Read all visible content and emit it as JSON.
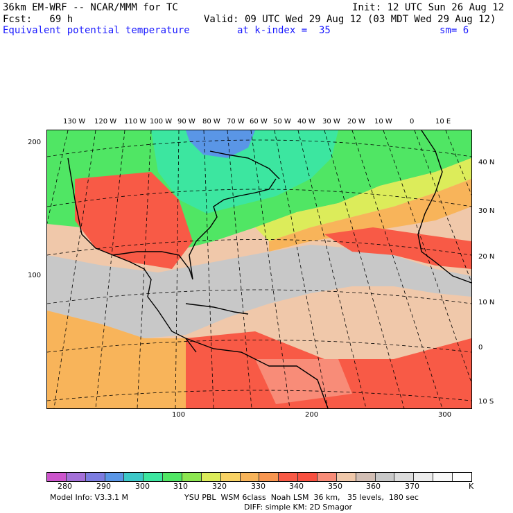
{
  "header": {
    "model_title": "36km EM-WRF -- NCAR/MMM for TC",
    "init": "Init: 12 UTC Sun 26 Aug 12",
    "fcst": "Fcst:   69 h",
    "valid": "Valid: 09 UTC Wed 29 Aug 12 (03 MDT Wed 29 Aug 12)",
    "field_name": "Equivalent potential temperature",
    "level": "at k-index =  35",
    "smoothing": "sm= 6"
  },
  "axes": {
    "top_lon_labels": [
      "130 W",
      "120 W",
      "110 W",
      "100 W",
      "90 W",
      "80 W",
      "70 W",
      "60 W",
      "50 W",
      "40 W",
      "30 W",
      "20 W",
      "10 W",
      "0",
      "10 E"
    ],
    "right_lat_labels": [
      "40 N",
      "30 N",
      "20 N",
      "10 N",
      "0",
      "10 S"
    ],
    "left_grid_labels": [
      "200",
      "100"
    ],
    "bottom_grid_labels": [
      "100",
      "200",
      "300"
    ]
  },
  "colorbar": {
    "colors": [
      "#cc55cc",
      "#a470d8",
      "#7c7ce0",
      "#5a96e6",
      "#3cc8c8",
      "#3ce6a0",
      "#50e664",
      "#8ce650",
      "#dcec5a",
      "#f8d264",
      "#f8b45a",
      "#f89650",
      "#f85a46",
      "#f85040",
      "#f88c78",
      "#f0c8aa",
      "#d2beb4",
      "#c8c8c8",
      "#dcdcdc",
      "#ececec",
      "#f8f8f8",
      "#ffffff"
    ],
    "labels": [
      "280",
      "290",
      "300",
      "310",
      "320",
      "330",
      "340",
      "350",
      "360",
      "370",
      "K"
    ]
  },
  "footer": {
    "model_info": "Model Info: V3.3.1 M",
    "physics": "YSU PBL  WSM 6class  Noah LSM  36 km,   35 levels,  180 sec",
    "diffusion": "DIFF: simple KM: 2D Smagor"
  }
}
